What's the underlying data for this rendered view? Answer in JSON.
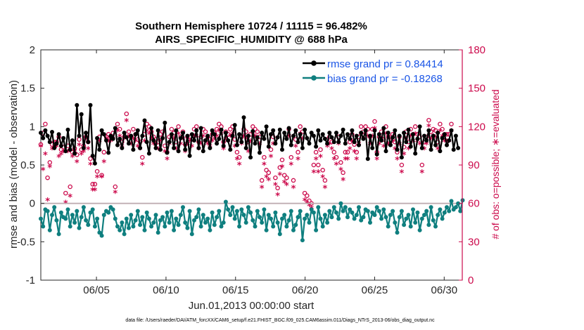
{
  "chart_data": {
    "type": "line",
    "title": "Southern Hemisphere 10724 / 11115 = 96.482%",
    "subtitle": "AIRS_SPECIFIC_HUMIDITY @ 688 hPa",
    "xlabel": "Jun.01,2013 00:00:00 start",
    "ylabel": "rmse and bias (model - observation)",
    "ylabel_right": "# of obs: o=possible; ∗=evaluated",
    "xlim": [
      1,
      31.3
    ],
    "ylim": [
      -1,
      2
    ],
    "ylim_right": [
      0,
      180
    ],
    "x_tick_values": [
      5,
      10,
      15,
      20,
      25,
      30
    ],
    "x_tick_labels": [
      "06/05",
      "06/10",
      "06/15",
      "06/20",
      "06/25",
      "06/30"
    ],
    "y_ticks": [
      "-1",
      "-0.5",
      "0",
      "0.5",
      "1",
      "1.5",
      "2"
    ],
    "y_ticks_right": [
      "0",
      "30",
      "60",
      "90",
      "120",
      "150",
      "180"
    ],
    "zero_line": 0,
    "legend": {
      "position": "top-right",
      "entries": [
        "rmse grand pr = 0.84414",
        "bias grand pr = -0.18268"
      ]
    },
    "series": [
      {
        "name": "rmse grand pr = 0.84414",
        "color": "#000000",
        "values": [
          0.92,
          0.85,
          0.95,
          0.88,
          0.8,
          0.93,
          0.72,
          0.78,
          0.9,
          0.75,
          0.85,
          0.68,
          0.96,
          0.7,
          0.82,
          0.65,
          1.28,
          0.88,
          1.16,
          0.72,
          0.92,
          0.8,
          1.28,
          0.62,
          0.52,
          0.85,
          0.7,
          0.95,
          0.9,
          0.82,
          0.66,
          0.88,
          0.84,
          0.98,
          0.76,
          0.84,
          0.72,
          0.92,
          0.86,
          0.78,
          0.88,
          0.7,
          0.9,
          0.95,
          0.72,
          0.88,
          1.08,
          0.8,
          0.65,
          0.98,
          0.82,
          0.72,
          0.95,
          0.7,
          0.85,
          1.05,
          0.66,
          0.8,
          0.9,
          0.72,
          0.95,
          0.68,
          0.85,
          0.92,
          0.7,
          0.88,
          0.62,
          0.9,
          0.82,
          0.95,
          0.72,
          0.98,
          0.68,
          0.82,
          0.88,
          0.72,
          0.95,
          0.9,
          0.78,
          0.84,
          0.96,
          0.75,
          0.92,
          0.82,
          0.7,
          0.88,
          1.02,
          0.76,
          0.9,
          0.8,
          1.12,
          0.72,
          0.88,
          0.6,
          0.94,
          0.78,
          0.86,
          0.66,
          0.92,
          0.84,
          1.0,
          0.74,
          0.9,
          0.95,
          0.78,
          0.86,
          0.96,
          0.7,
          0.92,
          0.84,
          0.98,
          0.76,
          0.88,
          0.95,
          0.8,
          0.9,
          0.72,
          0.96,
          0.85,
          0.78,
          0.92,
          0.88,
          0.74,
          0.95,
          0.82,
          0.9,
          0.84,
          0.78,
          0.92,
          0.86,
          0.8,
          0.92,
          0.8,
          0.88,
          0.96,
          0.78,
          0.9,
          0.84,
          0.95,
          0.8,
          0.88,
          0.76,
          0.92,
          0.84,
          0.95,
          0.58,
          0.88,
          0.72,
          0.95,
          0.64,
          0.9,
          0.82,
          0.98,
          0.68,
          0.92,
          0.76,
          0.86,
          0.95,
          0.7,
          0.88,
          0.6,
          0.92,
          0.8,
          0.96,
          0.74,
          0.9,
          0.65,
          0.84,
          1.0,
          0.72,
          0.88,
          0.82,
          0.95,
          0.7,
          0.88,
          0.76,
          0.92,
          0.68,
          0.85,
          0.9,
          0.76,
          0.82,
          0.95,
          0.7,
          0.88,
          0.72
        ]
      },
      {
        "name": "bias grand pr = -0.18268",
        "color": "#0f7f7f",
        "values": [
          -0.2,
          -0.3,
          -0.08,
          -0.1,
          -0.35,
          -0.15,
          -0.05,
          -0.22,
          -0.4,
          -0.12,
          -0.18,
          -0.2,
          -0.08,
          -0.3,
          -0.15,
          -0.25,
          -0.1,
          -0.32,
          -0.18,
          -0.05,
          -0.22,
          -0.28,
          -0.12,
          -0.08,
          -0.3,
          -0.2,
          -0.38,
          -0.42,
          -0.15,
          -0.1,
          -0.12,
          -0.05,
          -0.08,
          -0.2,
          -0.3,
          -0.35,
          -0.25,
          -0.4,
          -0.2,
          -0.32,
          -0.15,
          -0.3,
          -0.22,
          -0.1,
          -0.28,
          -0.18,
          -0.35,
          -0.12,
          -0.2,
          -0.3,
          -0.25,
          -0.15,
          -0.38,
          -0.22,
          -0.18,
          -0.3,
          -0.12,
          -0.25,
          -0.1,
          -0.35,
          -0.2,
          -0.28,
          -0.15,
          -0.05,
          -0.25,
          -0.32,
          -0.1,
          -0.4,
          -0.22,
          -0.18,
          -0.08,
          -0.3,
          -0.15,
          -0.25,
          -0.2,
          -0.35,
          -0.12,
          -0.28,
          -0.18,
          -0.1,
          -0.3,
          -0.25,
          0.02,
          -0.08,
          -0.15,
          -0.05,
          -0.2,
          -0.1,
          -0.3,
          -0.08,
          -0.15,
          -0.25,
          -0.05,
          -0.12,
          -0.22,
          -0.3,
          -0.1,
          -0.18,
          -0.25,
          -0.08,
          -0.35,
          -0.15,
          -0.2,
          -0.3,
          -0.12,
          -0.25,
          -0.4,
          -0.2,
          -0.15,
          -0.3,
          -0.22,
          -0.1,
          -0.35,
          -0.28,
          -0.18,
          -0.1,
          -0.48,
          -0.2,
          -0.15,
          -0.25,
          -0.08,
          -0.12,
          -0.35,
          -0.05,
          -0.2,
          -0.3,
          -0.15,
          -0.25,
          -0.1,
          -0.18,
          -0.05,
          -0.12,
          -0.2,
          0.0,
          -0.1,
          -0.05,
          -0.18,
          -0.08,
          -0.12,
          -0.2,
          -0.15,
          -0.05,
          -0.22,
          -0.18,
          -0.08,
          -0.1,
          -0.25,
          -0.12,
          -0.15,
          -0.05,
          -0.1,
          -0.2,
          -0.08,
          -0.18,
          -0.3,
          -0.15,
          -0.1,
          -0.25,
          -0.38,
          -0.18,
          -0.1,
          -0.28,
          -0.2,
          -0.15,
          -0.3,
          -0.08,
          -0.25,
          -0.12,
          -0.35,
          -0.2,
          -0.15,
          -0.1,
          -0.28,
          -0.05,
          -0.22,
          -0.3,
          -0.15,
          -0.08,
          -0.2,
          -0.12,
          -0.05,
          -0.1,
          0.03,
          -0.08,
          -0.05,
          0.0,
          -0.1,
          0.04
        ]
      }
    ],
    "obs_possible": [
      106,
      115,
      122,
      80,
      92,
      106,
      108,
      108,
      112,
      102,
      104,
      68,
      105,
      73,
      100,
      103,
      98,
      110,
      102,
      105,
      112,
      108,
      95,
      75,
      75,
      85,
      112,
      82,
      100,
      112,
      114,
      112,
      115,
      73,
      122,
      118,
      108,
      112,
      130,
      116,
      112,
      118,
      114,
      110,
      108,
      96,
      114,
      122,
      120,
      116,
      112,
      110,
      108,
      114,
      116,
      105,
      100,
      112,
      118,
      115,
      108,
      120,
      112,
      116,
      106,
      112,
      112,
      110,
      118,
      120,
      108,
      112,
      118,
      116,
      112,
      110,
      114,
      115,
      118,
      122,
      120,
      108,
      116,
      114,
      118,
      120,
      110,
      100,
      96,
      112,
      118,
      116,
      108,
      114,
      120,
      118,
      116,
      112,
      78,
      96,
      86,
      84,
      102,
      112,
      80,
      72,
      88,
      94,
      82,
      80,
      118,
      96,
      78,
      110,
      100,
      120,
      116,
      68,
      66,
      62,
      60,
      90,
      100,
      90,
      102,
      86,
      78,
      110,
      112,
      108,
      100,
      96,
      112,
      92,
      84,
      100,
      100,
      108,
      114,
      106,
      100,
      112,
      120,
      116,
      120,
      118,
      112,
      118,
      124,
      100,
      112,
      116,
      110,
      120,
      112,
      112,
      114,
      108,
      100,
      112,
      90,
      104,
      116,
      108,
      118,
      114,
      120,
      114,
      112,
      90,
      108,
      112,
      125,
      116,
      118,
      117,
      108,
      122,
      118,
      114,
      114,
      114,
      122
    ],
    "obs_evaluated": [
      104,
      86,
      98,
      62,
      88,
      102,
      104,
      104,
      96,
      98,
      100,
      60,
      100,
      65,
      96,
      100,
      92,
      105,
      98,
      100,
      110,
      102,
      90,
      70,
      70,
      80,
      108,
      80,
      92,
      110,
      108,
      108,
      110,
      68,
      116,
      112,
      104,
      110,
      124,
      112,
      106,
      110,
      108,
      104,
      102,
      90,
      108,
      116,
      114,
      110,
      106,
      106,
      102,
      108,
      110,
      100,
      94,
      106,
      112,
      110,
      102,
      114,
      106,
      110,
      100,
      106,
      108,
      104,
      112,
      112,
      102,
      106,
      112,
      108,
      106,
      104,
      108,
      110,
      112,
      116,
      114,
      102,
      110,
      108,
      112,
      114,
      104,
      94,
      90,
      106,
      112,
      110,
      100,
      108,
      114,
      112,
      110,
      106,
      72,
      90,
      80,
      78,
      96,
      106,
      74,
      66,
      82,
      88,
      76,
      74,
      112,
      90,
      72,
      104,
      94,
      114,
      110,
      62,
      60,
      58,
      56,
      84,
      94,
      84,
      96,
      80,
      72,
      104,
      106,
      102,
      94,
      90,
      106,
      86,
      78,
      94,
      94,
      102,
      108,
      100,
      94,
      106,
      114,
      110,
      114,
      112,
      106,
      112,
      118,
      94,
      106,
      110,
      104,
      114,
      106,
      106,
      108,
      102,
      94,
      106,
      84,
      98,
      110,
      102,
      112,
      108,
      114,
      108,
      106,
      84,
      102,
      106,
      120,
      110,
      112,
      111,
      102,
      116,
      112,
      108,
      108,
      108,
      116
    ]
  },
  "colors": {
    "rmse": "#000000",
    "bias": "#0f7f7f",
    "obs": "#cc0a4c",
    "zero_line": "#bfaeb2",
    "legend_text": "#1a55e6"
  },
  "footer": "data file: /Users/raeder/DAI/ATM_forcXX/CAM6_setup/f.e21.FHIST_BGC.f09_025.CAM6assim.011/Diags_NTrS_2013-06/obs_diag_output.nc"
}
